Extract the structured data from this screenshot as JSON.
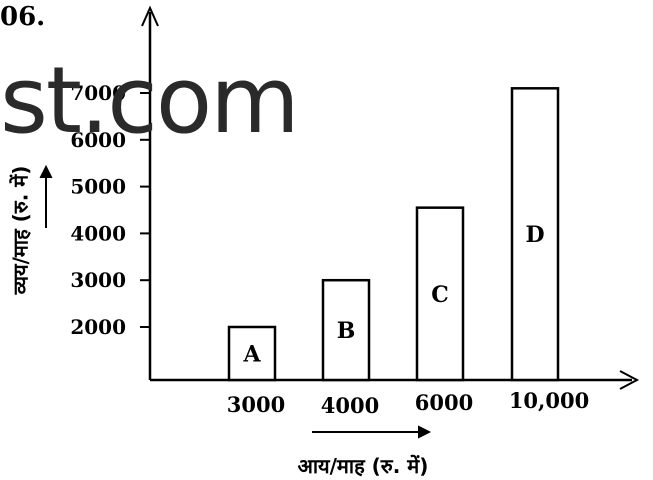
{
  "question_number": "06.",
  "watermark": "st.com",
  "chart_data": {
    "type": "bar",
    "categories": [
      "3000",
      "4000",
      "6000",
      "10,000"
    ],
    "bar_labels": [
      "A",
      "B",
      "C",
      "D"
    ],
    "values": [
      2000,
      3000,
      4550,
      7100
    ],
    "yticks": [
      "2000",
      "3000",
      "4000",
      "5000",
      "6000",
      "7000"
    ],
    "ytick_values": [
      2000,
      3000,
      4000,
      5000,
      6000,
      7000
    ],
    "xlabel": "आय/माह (रु. में)",
    "ylabel": "व्यय/माह (रु. में)",
    "ylim": [
      900,
      8000
    ],
    "grid": false
  }
}
